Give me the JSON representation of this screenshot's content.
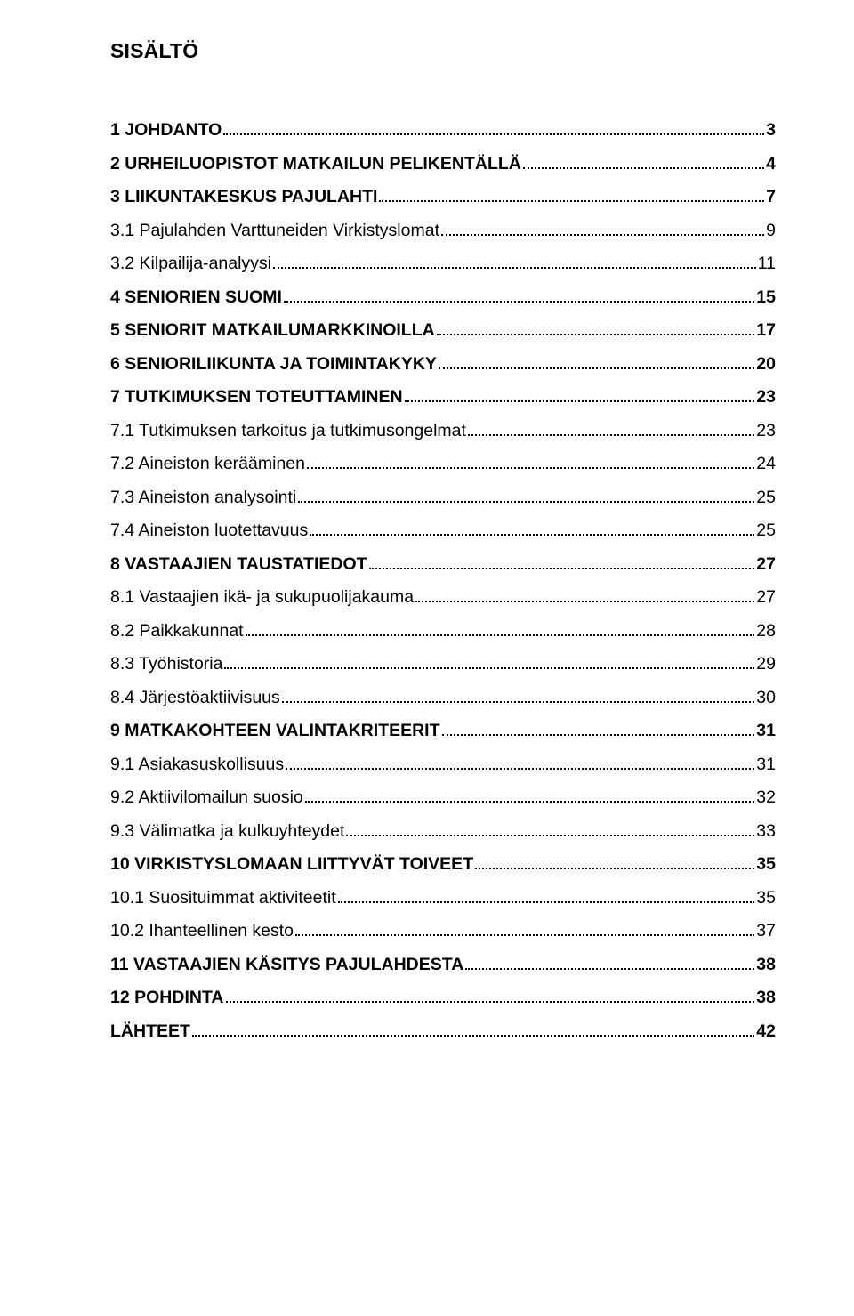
{
  "title": "SISÄLTÖ",
  "toc": [
    {
      "label": "1 JOHDANTO",
      "page": "3",
      "level": 0
    },
    {
      "label": "2 URHEILUOPISTOT MATKAILUN PELIKENTÄLLÄ",
      "page": "4",
      "level": 0
    },
    {
      "label": "3 LIIKUNTAKESKUS PAJULAHTI",
      "page": "7",
      "level": 0
    },
    {
      "label": "3.1 Pajulahden Varttuneiden Virkistyslomat",
      "page": "9",
      "level": 1
    },
    {
      "label": "3.2 Kilpailija-analyysi",
      "page": "11",
      "level": 1
    },
    {
      "label": "4 SENIORIEN SUOMI",
      "page": "15",
      "level": 0
    },
    {
      "label": "5 SENIORIT MATKAILUMARKKINOILLA",
      "page": "17",
      "level": 0
    },
    {
      "label": "6 SENIORILIIKUNTA JA TOIMINTAKYKY",
      "page": "20",
      "level": 0
    },
    {
      "label": "7 TUTKIMUKSEN TOTEUTTAMINEN",
      "page": "23",
      "level": 0
    },
    {
      "label": "7.1 Tutkimuksen tarkoitus ja tutkimusongelmat",
      "page": "23",
      "level": 1
    },
    {
      "label": "7.2 Aineiston kerääminen",
      "page": "24",
      "level": 1
    },
    {
      "label": "7.3 Aineiston analysointi",
      "page": "25",
      "level": 1
    },
    {
      "label": "7.4 Aineiston luotettavuus",
      "page": "25",
      "level": 1
    },
    {
      "label": "8 VASTAAJIEN TAUSTATIEDOT",
      "page": "27",
      "level": 0
    },
    {
      "label": "8.1 Vastaajien ikä- ja sukupuolijakauma",
      "page": "27",
      "level": 1
    },
    {
      "label": "8.2 Paikkakunnat",
      "page": "28",
      "level": 1
    },
    {
      "label": "8.3 Työhistoria",
      "page": "29",
      "level": 1
    },
    {
      "label": "8.4 Järjestöaktiivisuus",
      "page": "30",
      "level": 1
    },
    {
      "label": "9 MATKAKOHTEEN VALINTAKRITEERIT",
      "page": "31",
      "level": 0
    },
    {
      "label": "9.1 Asiakasuskollisuus",
      "page": "31",
      "level": 1
    },
    {
      "label": "9.2 Aktiivilomailun suosio",
      "page": "32",
      "level": 1
    },
    {
      "label": "9.3 Välimatka ja kulkuyhteydet",
      "page": "33",
      "level": 1
    },
    {
      "label": "10 VIRKISTYSLOMAAN LIITTYVÄT TOIVEET",
      "page": "35",
      "level": 0
    },
    {
      "label": "10.1 Suosituimmat aktiviteetit",
      "page": "35",
      "level": 1
    },
    {
      "label": "10.2 Ihanteellinen kesto",
      "page": "37",
      "level": 1
    },
    {
      "label": "11 VASTAAJIEN KÄSITYS PAJULAHDESTA",
      "page": "38",
      "level": 0
    },
    {
      "label": "12 POHDINTA",
      "page": "38",
      "level": 0
    },
    {
      "label": "LÄHTEET",
      "page": "42",
      "level": 0
    }
  ]
}
